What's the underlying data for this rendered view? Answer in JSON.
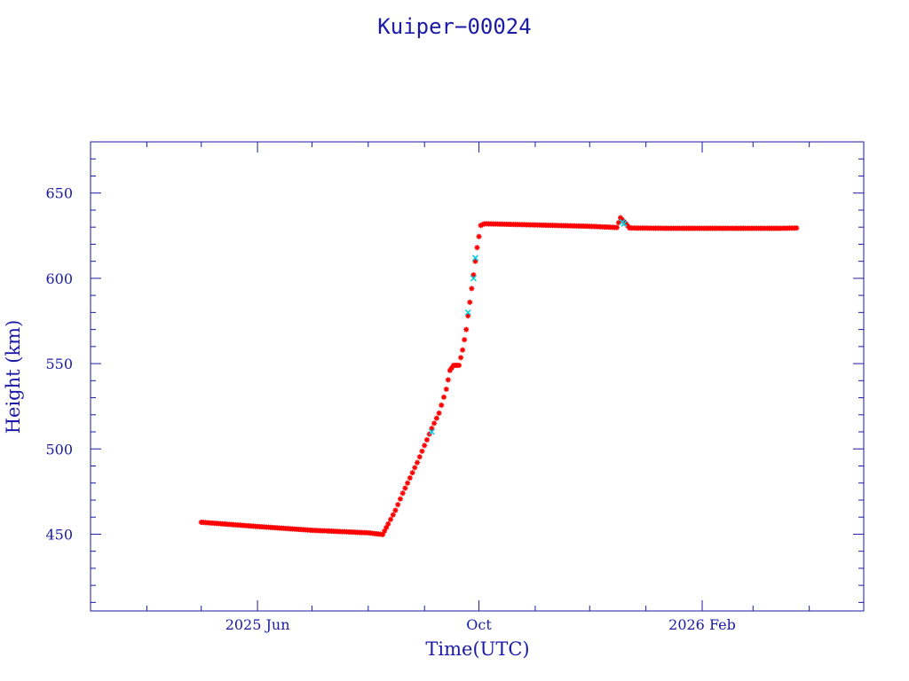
{
  "chart_data": {
    "type": "scatter",
    "title": "Kuiper−00024",
    "xlabel": "Time(UTC)",
    "ylabel": "Height (km)",
    "x_axis": {
      "type": "date",
      "range": [
        "2025-03-01",
        "2026-05-01"
      ],
      "tick_labels": [
        {
          "date": "2025-06-01",
          "label": "2025 Jun"
        },
        {
          "date": "2025-10-01",
          "label": "Oct"
        },
        {
          "date": "2026-02-01",
          "label": "2026 Feb"
        }
      ]
    },
    "y_axis": {
      "range": [
        405,
        680
      ],
      "ticks": [
        450,
        500,
        550,
        600,
        650
      ]
    },
    "grid": false,
    "series": [
      {
        "color": "#ff0000",
        "marker": "asterisk",
        "points": [
          [
            "2025-05-01",
            457.0
          ],
          [
            "2025-06-01",
            454.5
          ],
          [
            "2025-07-01",
            452.3
          ],
          [
            "2025-08-01",
            450.8
          ],
          [
            "2025-08-09",
            449.8
          ],
          [
            "2025-08-12",
            456.0
          ],
          [
            "2025-08-16",
            464.0
          ],
          [
            "2025-08-20",
            474.0
          ],
          [
            "2025-08-24",
            483.0
          ],
          [
            "2025-08-28",
            492.0
          ],
          [
            "2025-09-01",
            502.0
          ],
          [
            "2025-09-05",
            512.0
          ],
          [
            "2025-09-09",
            521.0
          ],
          [
            "2025-09-13",
            535.0
          ],
          [
            "2025-09-15",
            546.0
          ],
          [
            "2025-09-17",
            549.0
          ],
          [
            "2025-09-20",
            549.0
          ],
          [
            "2025-09-22",
            558.0
          ],
          [
            "2025-09-24",
            570.0
          ],
          [
            "2025-09-26",
            586.0
          ],
          [
            "2025-09-28",
            602.0
          ],
          [
            "2025-09-30",
            618.0
          ],
          [
            "2025-10-02",
            631.0
          ],
          [
            "2025-10-04",
            632.0
          ],
          [
            "2025-11-01",
            631.3
          ],
          [
            "2025-12-01",
            630.5
          ],
          [
            "2025-12-16",
            629.8
          ],
          [
            "2025-12-18",
            635.5
          ],
          [
            "2025-12-21",
            632.0
          ],
          [
            "2025-12-23",
            629.5
          ],
          [
            "2026-01-15",
            629.3
          ],
          [
            "2026-02-15",
            629.3
          ],
          [
            "2026-03-15",
            629.3
          ],
          [
            "2026-03-25",
            629.5
          ]
        ]
      },
      {
        "color": "#00cfe0",
        "marker": "cross",
        "points": [
          [
            "2025-09-05",
            510.0
          ],
          [
            "2025-09-25",
            580.0
          ],
          [
            "2025-09-28",
            600.0
          ],
          [
            "2025-09-29",
            612.0
          ],
          [
            "2025-12-19",
            633.0
          ],
          [
            "2025-12-20",
            632.0
          ]
        ]
      }
    ]
  }
}
